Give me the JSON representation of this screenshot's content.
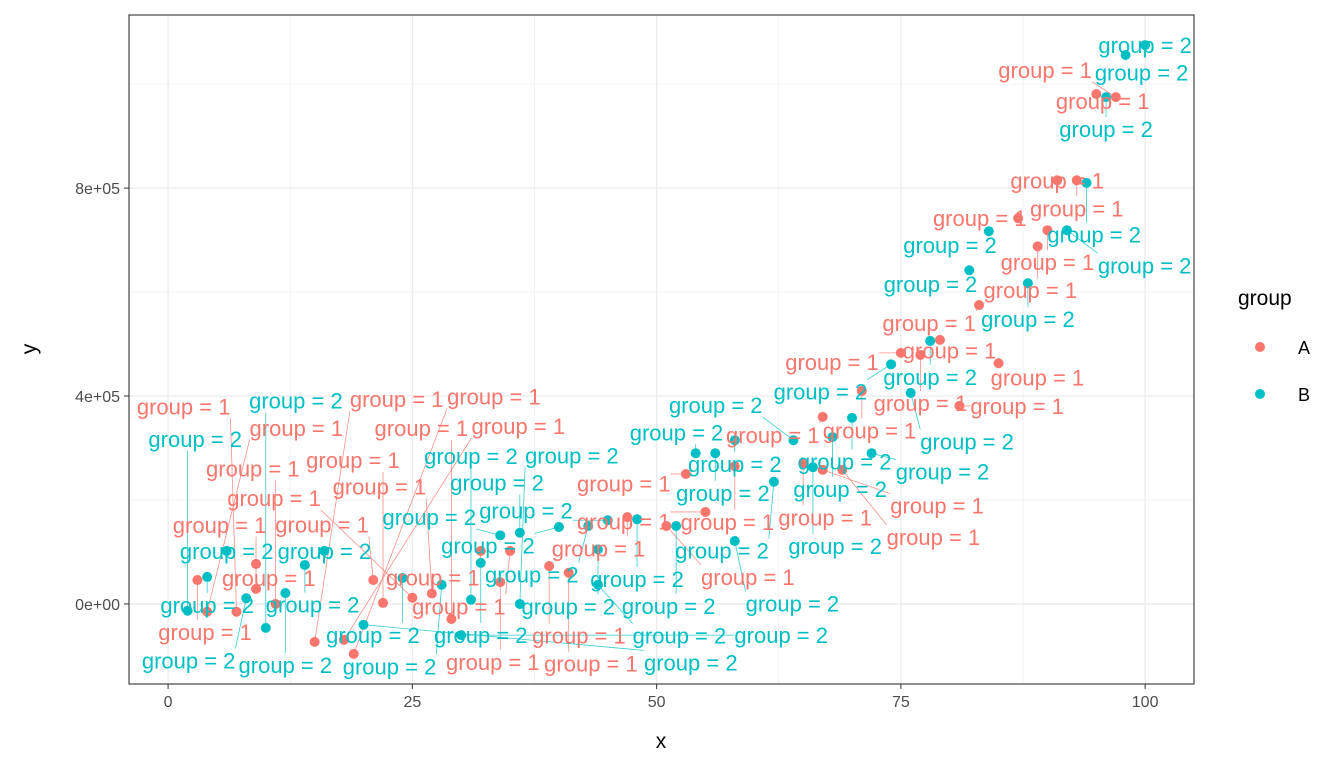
{
  "chart_data": {
    "type": "scatter",
    "title": "",
    "xlabel": "x",
    "ylabel": "y",
    "xlim": [
      -4,
      105
    ],
    "ylim": [
      -154000,
      1133000
    ],
    "xticks": [
      0,
      25,
      50,
      75,
      100
    ],
    "xtick_labels": [
      "0",
      "25",
      "50",
      "75",
      "100"
    ],
    "yticks": [
      0,
      400000,
      800000
    ],
    "ytick_labels": [
      "0e+00",
      "4e+05",
      "8e+05"
    ],
    "grid": true,
    "legend": {
      "title": "group",
      "placement": "right",
      "entries": [
        "A",
        "B"
      ]
    },
    "colors": {
      "A": "#F8766D",
      "B": "#00BFC4"
    },
    "point_label_text": {
      "A": "group = 1",
      "B": "group = 2"
    },
    "series": [
      {
        "name": "A",
        "points": [
          [
            95,
            981000
          ],
          [
            97,
            975000
          ],
          [
            93,
            815000
          ],
          [
            91,
            815000
          ],
          [
            87,
            742000
          ],
          [
            90,
            719000
          ],
          [
            89,
            688000
          ],
          [
            83,
            575000
          ],
          [
            85,
            463000
          ],
          [
            79,
            508000
          ],
          [
            77,
            479000
          ],
          [
            75,
            483000
          ],
          [
            81,
            381000
          ],
          [
            71,
            410000
          ],
          [
            67,
            360000
          ],
          [
            65,
            271000
          ],
          [
            69,
            258000
          ],
          [
            67,
            258000
          ],
          [
            58,
            265000
          ],
          [
            55,
            177000
          ],
          [
            53,
            250000
          ],
          [
            47,
            167000
          ],
          [
            51,
            150000
          ],
          [
            35,
            102000
          ],
          [
            32,
            102000
          ],
          [
            39,
            73000
          ],
          [
            41,
            60000
          ],
          [
            34,
            42000
          ],
          [
            21,
            46000
          ],
          [
            29,
            -29000
          ],
          [
            9,
            77000
          ],
          [
            3,
            46000
          ],
          [
            9,
            29000
          ],
          [
            11,
            0
          ],
          [
            15,
            -73000
          ],
          [
            19,
            -96000
          ],
          [
            18,
            -69000
          ],
          [
            7,
            -15000
          ],
          [
            4,
            -15000
          ],
          [
            25,
            12000
          ],
          [
            22,
            2000
          ],
          [
            27,
            20000
          ]
        ]
      },
      {
        "name": "B",
        "points": [
          [
            100,
            1075000
          ],
          [
            98,
            1056000
          ],
          [
            96,
            975000
          ],
          [
            94,
            810000
          ],
          [
            92,
            719000
          ],
          [
            84,
            717000
          ],
          [
            82,
            642000
          ],
          [
            88,
            617000
          ],
          [
            78,
            506000
          ],
          [
            74,
            461000
          ],
          [
            76,
            406000
          ],
          [
            70,
            358000
          ],
          [
            72,
            290000
          ],
          [
            68,
            321000
          ],
          [
            64,
            315000
          ],
          [
            58,
            315000
          ],
          [
            54,
            290000
          ],
          [
            56,
            290000
          ],
          [
            66,
            263000
          ],
          [
            62,
            235000
          ],
          [
            48,
            163000
          ],
          [
            45,
            161000
          ],
          [
            52,
            150000
          ],
          [
            43,
            150000
          ],
          [
            40,
            148000
          ],
          [
            36,
            137000
          ],
          [
            34,
            132000
          ],
          [
            44,
            105000
          ],
          [
            58,
            121000
          ],
          [
            32,
            79000
          ],
          [
            44,
            37000
          ],
          [
            28,
            37000
          ],
          [
            31,
            8000
          ],
          [
            36,
            0
          ],
          [
            6,
            102000
          ],
          [
            16,
            102000
          ],
          [
            14,
            75000
          ],
          [
            4,
            52000
          ],
          [
            12,
            21000
          ],
          [
            8,
            11000
          ],
          [
            2,
            -13000
          ],
          [
            10,
            -46000
          ],
          [
            20,
            -40000
          ],
          [
            24,
            50000
          ],
          [
            30,
            -60000
          ]
        ]
      }
    ]
  }
}
